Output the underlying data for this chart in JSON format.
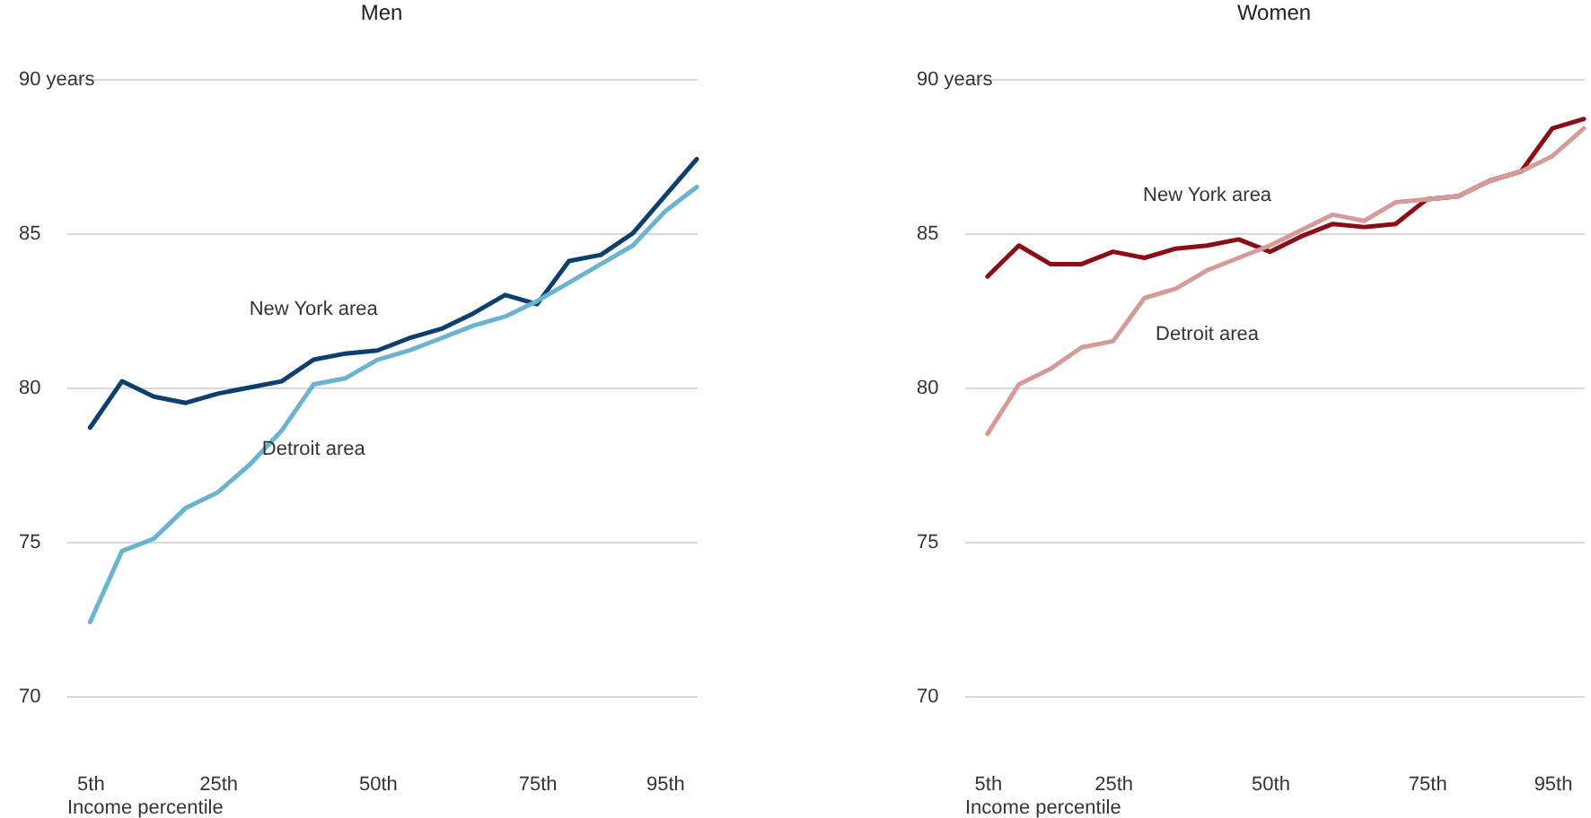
{
  "chart_data": [
    {
      "type": "line",
      "title": "Men",
      "xlabel": "Income percentile",
      "x": [
        5,
        10,
        15,
        20,
        25,
        30,
        35,
        40,
        45,
        50,
        55,
        60,
        65,
        70,
        75,
        80,
        85,
        90,
        95,
        100
      ],
      "xlim": [
        1.3,
        100
      ],
      "xticks": [
        {
          "value": 5,
          "label": "5th"
        },
        {
          "value": 25,
          "label": "25th"
        },
        {
          "value": 50,
          "label": "50th"
        },
        {
          "value": 75,
          "label": "75th"
        },
        {
          "value": 95,
          "label": "95th"
        }
      ],
      "ylim": [
        70,
        90
      ],
      "yticks": [
        70,
        75,
        80,
        85,
        {
          "value": 90,
          "label": "90 years"
        }
      ],
      "grid": "y",
      "marker": "none",
      "line_style": "solid",
      "series": [
        {
          "name": "New York area",
          "color": "#0d3f6e",
          "values": [
            78.7,
            80.2,
            79.7,
            79.5,
            79.8,
            80.0,
            80.2,
            80.9,
            81.1,
            81.2,
            81.6,
            81.9,
            82.4,
            83.0,
            82.7,
            84.1,
            84.3,
            85.0,
            86.2,
            87.4
          ]
        },
        {
          "name": "Detroit area",
          "color": "#6ab3d1",
          "values": [
            72.4,
            74.7,
            75.1,
            76.1,
            76.6,
            77.5,
            78.6,
            80.1,
            80.3,
            80.9,
            81.2,
            81.6,
            82.0,
            82.3,
            82.8,
            83.4,
            84.0,
            84.6,
            85.7,
            86.5
          ]
        }
      ]
    },
    {
      "type": "line",
      "title": "Women",
      "xlabel": "Income percentile",
      "x": [
        5,
        10,
        15,
        20,
        25,
        30,
        35,
        40,
        45,
        50,
        55,
        60,
        65,
        70,
        75,
        80,
        85,
        90,
        95,
        100
      ],
      "xlim": [
        1.3,
        100
      ],
      "xticks": [
        {
          "value": 5,
          "label": "5th"
        },
        {
          "value": 25,
          "label": "25th"
        },
        {
          "value": 50,
          "label": "50th"
        },
        {
          "value": 75,
          "label": "75th"
        },
        {
          "value": 95,
          "label": "95th"
        }
      ],
      "ylim": [
        70,
        90
      ],
      "yticks": [
        70,
        75,
        80,
        85,
        {
          "value": 90,
          "label": "90 years"
        }
      ],
      "grid": "y",
      "marker": "none",
      "line_style": "solid",
      "series": [
        {
          "name": "New York area",
          "color": "#8b0d16",
          "values": [
            83.6,
            84.6,
            84.0,
            84.0,
            84.4,
            84.2,
            84.5,
            84.6,
            84.8,
            84.4,
            84.9,
            85.3,
            85.2,
            85.3,
            86.1,
            86.2,
            86.7,
            87.0,
            88.4,
            88.7
          ]
        },
        {
          "name": "Detroit area",
          "color": "#d69a98",
          "values": [
            78.5,
            80.1,
            80.6,
            81.3,
            81.5,
            82.9,
            83.2,
            83.8,
            84.2,
            84.6,
            85.1,
            85.6,
            85.4,
            86.0,
            86.1,
            86.2,
            86.7,
            87.0,
            87.5,
            88.4
          ]
        }
      ]
    }
  ]
}
